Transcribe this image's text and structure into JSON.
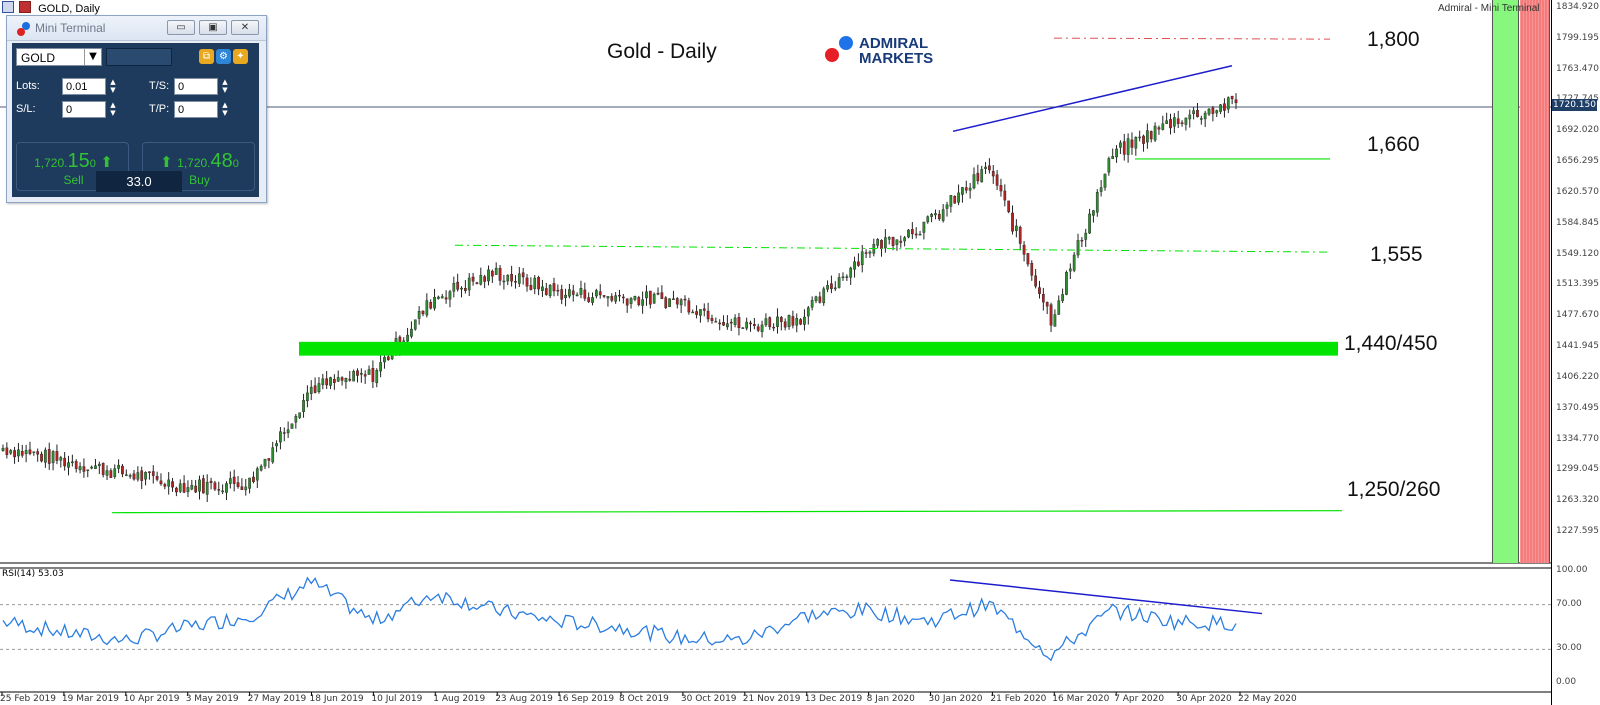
{
  "window": {
    "title": "GOLD, Daily"
  },
  "mini_terminal": {
    "title": "Mini Terminal",
    "symbol": "GOLD",
    "lots_label": "Lots:",
    "lots_value": "0.01",
    "ts_label": "T/S:",
    "ts_value": "0",
    "sl_label": "S/L:",
    "sl_value": "0",
    "tp_label": "T/P:",
    "tp_value": "0",
    "sell_small": "1,720.",
    "sell_big": "15",
    "sell_sup": "0",
    "sell_label": "Sell",
    "buy_small": "1,720.",
    "buy_big": "48",
    "buy_sup": "0",
    "buy_label": "Buy",
    "spread": "33.0"
  },
  "chart": {
    "title": "Gold - Daily",
    "brand_line1": "ADMIRAL",
    "brand_line2": "MARKETS",
    "top_right_label": "Admiral - Mini Terminal",
    "current_price": "1720.150",
    "rsi_label": "RSI(14) 53.03"
  },
  "levels": [
    {
      "text": "1,800"
    },
    {
      "text": "1,660"
    },
    {
      "text": "1,555"
    },
    {
      "text": "1,440/450"
    },
    {
      "text": "1,250/260"
    }
  ],
  "colors": {
    "bull": "#2e8b2e",
    "bear": "#b22222",
    "support": "#00e400",
    "trend": "#1d1dcc",
    "rsi": "#2a7de1",
    "resist": "#e05050"
  },
  "icons": {
    "minimize": "minimize-icon",
    "restore": "restore-icon",
    "close": "close-icon",
    "sell_arrow": "arrow-up-icon",
    "buy_arrow": "arrow-up-icon"
  },
  "chart_data": {
    "type": "line",
    "title": "Gold - Daily",
    "price_axis_ticks": [
      "1834.920",
      "1799.195",
      "1763.470",
      "1727.745",
      "1692.020",
      "1656.295",
      "1620.570",
      "1584.845",
      "1549.120",
      "1513.395",
      "1477.670",
      "1441.945",
      "1406.220",
      "1370.495",
      "1334.770",
      "1299.045",
      "1263.320",
      "1227.595"
    ],
    "rsi_axis_ticks": [
      "100.00",
      "70.00",
      "30.00",
      "0.00"
    ],
    "x_tick_labels": [
      "25 Feb 2019",
      "19 Mar 2019",
      "10 Apr 2019",
      "3 May 2019",
      "27 May 2019",
      "18 Jun 2019",
      "10 Jul 2019",
      "1 Aug 2019",
      "23 Aug 2019",
      "16 Sep 2019",
      "8 Oct 2019",
      "30 Oct 2019",
      "21 Nov 2019",
      "13 Dec 2019",
      "8 Jan 2020",
      "30 Jan 2020",
      "21 Feb 2020",
      "16 Mar 2020",
      "7 Apr 2020",
      "30 Apr 2020",
      "22 May 2020"
    ],
    "series": [
      {
        "name": "close",
        "x": [
          "25 Feb 2019",
          "19 Mar 2019",
          "10 Apr 2019",
          "3 May 2019",
          "27 May 2019",
          "18 Jun 2019",
          "10 Jul 2019",
          "1 Aug 2019",
          "23 Aug 2019",
          "16 Sep 2019",
          "8 Oct 2019",
          "30 Oct 2019",
          "21 Nov 2019",
          "13 Dec 2019",
          "8 Jan 2020",
          "30 Jan 2020",
          "21 Feb 2020",
          "16 Mar 2020",
          "7 Apr 2020",
          "30 Apr 2020",
          "22 May 2020"
        ],
        "values": [
          1325,
          1310,
          1295,
          1280,
          1285,
          1395,
          1410,
          1500,
          1528,
          1505,
          1500,
          1495,
          1465,
          1478,
          1555,
          1585,
          1650,
          1475,
          1665,
          1705,
          1725
        ]
      },
      {
        "name": "RSI(14)",
        "x": [
          "25 Feb 2019",
          "19 Mar 2019",
          "10 Apr 2019",
          "3 May 2019",
          "27 May 2019",
          "18 Jun 2019",
          "10 Jul 2019",
          "1 Aug 2019",
          "23 Aug 2019",
          "16 Sep 2019",
          "8 Oct 2019",
          "30 Oct 2019",
          "21 Nov 2019",
          "13 Dec 2019",
          "8 Jan 2020",
          "30 Jan 2020",
          "21 Feb 2020",
          "16 Mar 2020",
          "7 Apr 2020",
          "30 Apr 2020",
          "22 May 2020"
        ],
        "values": [
          55,
          45,
          38,
          50,
          60,
          90,
          55,
          80,
          65,
          55,
          50,
          40,
          38,
          60,
          65,
          55,
          70,
          25,
          65,
          55,
          53
        ]
      }
    ],
    "levels": [
      1800,
      1660,
      1555,
      1440,
      1250
    ]
  }
}
